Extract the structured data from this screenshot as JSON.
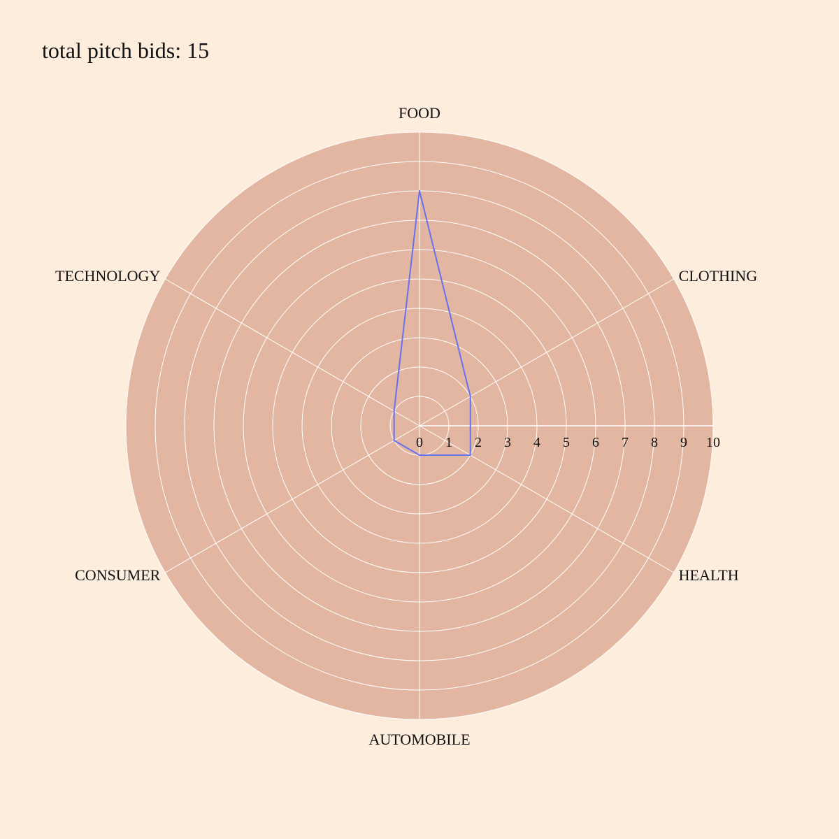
{
  "chart_data": {
    "type": "radar",
    "title": "total pitch bids: 15",
    "categories": [
      "FOOD",
      "CLOTHING",
      "HEALTH",
      "AUTOMOBILE",
      "CONSUMER",
      "TECHNOLOGY"
    ],
    "series": [
      {
        "values": [
          8,
          2,
          2,
          1,
          1,
          1
        ]
      }
    ],
    "radial_range": [
      0,
      10
    ],
    "radial_ticks": [
      "0",
      "1",
      "2",
      "3",
      "4",
      "5",
      "6",
      "7",
      "8",
      "9",
      "10"
    ],
    "grid": true,
    "colors": {
      "background": "#fdeddd",
      "plot_area": "#e2b6a1",
      "grid": "#ffffff",
      "series": "#6670f0"
    }
  }
}
